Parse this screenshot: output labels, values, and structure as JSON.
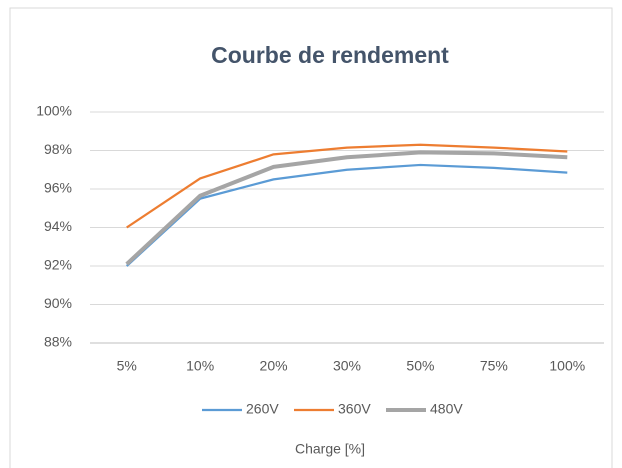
{
  "chart_data": {
    "type": "line",
    "title": "Courbe de rendement",
    "x_label": "Charge [%]",
    "categories": [
      "5%",
      "10%",
      "20%",
      "30%",
      "50%",
      "75%",
      "100%"
    ],
    "series": [
      {
        "name": "260V",
        "color": "#5b9bd5",
        "values": [
          92.0,
          95.5,
          96.5,
          97.0,
          97.25,
          97.1,
          96.85
        ]
      },
      {
        "name": "360V",
        "color": "#ed7d31",
        "values": [
          94.0,
          96.55,
          97.8,
          98.15,
          98.3,
          98.15,
          97.95
        ]
      },
      {
        "name": "480V",
        "color": "#a5a5a5",
        "values": [
          92.1,
          95.65,
          97.15,
          97.65,
          97.9,
          97.85,
          97.65
        ]
      }
    ],
    "ylim": [
      88,
      100
    ],
    "yticks": [
      {
        "value": 88,
        "label": "88%"
      },
      {
        "value": 90,
        "label": "90%"
      },
      {
        "value": 92,
        "label": "92%"
      },
      {
        "value": 94,
        "label": "94%"
      },
      {
        "value": 96,
        "label": "96%"
      },
      {
        "value": 98,
        "label": "98%"
      },
      {
        "value": 100,
        "label": "100%"
      }
    ],
    "grid": true,
    "legend": "bottom"
  }
}
